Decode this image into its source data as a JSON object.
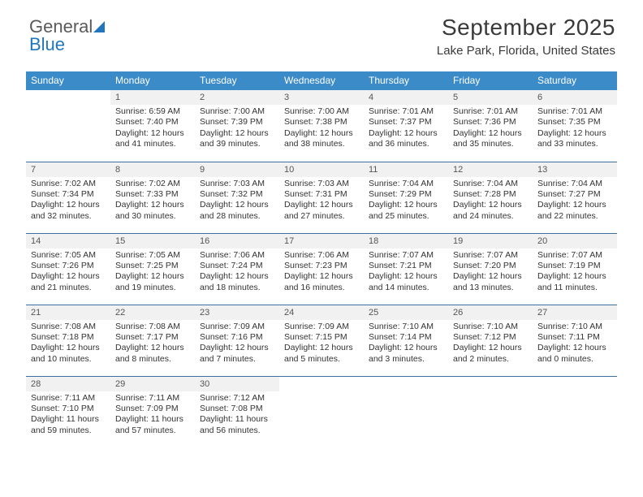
{
  "brand": {
    "part1": "General",
    "part2": "Blue"
  },
  "header": {
    "month_title": "September 2025",
    "location": "Lake Park, Florida, United States"
  },
  "colors": {
    "header_bg": "#3b8bc9",
    "header_text": "#ffffff",
    "daynum_bg": "#f1f1f1",
    "row_border": "#3b6fa0",
    "brand_gray": "#5a5a5a",
    "brand_blue": "#2176bd"
  },
  "day_headers": [
    "Sunday",
    "Monday",
    "Tuesday",
    "Wednesday",
    "Thursday",
    "Friday",
    "Saturday"
  ],
  "weeks": [
    [
      null,
      {
        "n": "1",
        "sr": "Sunrise: 6:59 AM",
        "ss": "Sunset: 7:40 PM",
        "dl": "Daylight: 12 hours and 41 minutes."
      },
      {
        "n": "2",
        "sr": "Sunrise: 7:00 AM",
        "ss": "Sunset: 7:39 PM",
        "dl": "Daylight: 12 hours and 39 minutes."
      },
      {
        "n": "3",
        "sr": "Sunrise: 7:00 AM",
        "ss": "Sunset: 7:38 PM",
        "dl": "Daylight: 12 hours and 38 minutes."
      },
      {
        "n": "4",
        "sr": "Sunrise: 7:01 AM",
        "ss": "Sunset: 7:37 PM",
        "dl": "Daylight: 12 hours and 36 minutes."
      },
      {
        "n": "5",
        "sr": "Sunrise: 7:01 AM",
        "ss": "Sunset: 7:36 PM",
        "dl": "Daylight: 12 hours and 35 minutes."
      },
      {
        "n": "6",
        "sr": "Sunrise: 7:01 AM",
        "ss": "Sunset: 7:35 PM",
        "dl": "Daylight: 12 hours and 33 minutes."
      }
    ],
    [
      {
        "n": "7",
        "sr": "Sunrise: 7:02 AM",
        "ss": "Sunset: 7:34 PM",
        "dl": "Daylight: 12 hours and 32 minutes."
      },
      {
        "n": "8",
        "sr": "Sunrise: 7:02 AM",
        "ss": "Sunset: 7:33 PM",
        "dl": "Daylight: 12 hours and 30 minutes."
      },
      {
        "n": "9",
        "sr": "Sunrise: 7:03 AM",
        "ss": "Sunset: 7:32 PM",
        "dl": "Daylight: 12 hours and 28 minutes."
      },
      {
        "n": "10",
        "sr": "Sunrise: 7:03 AM",
        "ss": "Sunset: 7:31 PM",
        "dl": "Daylight: 12 hours and 27 minutes."
      },
      {
        "n": "11",
        "sr": "Sunrise: 7:04 AM",
        "ss": "Sunset: 7:29 PM",
        "dl": "Daylight: 12 hours and 25 minutes."
      },
      {
        "n": "12",
        "sr": "Sunrise: 7:04 AM",
        "ss": "Sunset: 7:28 PM",
        "dl": "Daylight: 12 hours and 24 minutes."
      },
      {
        "n": "13",
        "sr": "Sunrise: 7:04 AM",
        "ss": "Sunset: 7:27 PM",
        "dl": "Daylight: 12 hours and 22 minutes."
      }
    ],
    [
      {
        "n": "14",
        "sr": "Sunrise: 7:05 AM",
        "ss": "Sunset: 7:26 PM",
        "dl": "Daylight: 12 hours and 21 minutes."
      },
      {
        "n": "15",
        "sr": "Sunrise: 7:05 AM",
        "ss": "Sunset: 7:25 PM",
        "dl": "Daylight: 12 hours and 19 minutes."
      },
      {
        "n": "16",
        "sr": "Sunrise: 7:06 AM",
        "ss": "Sunset: 7:24 PM",
        "dl": "Daylight: 12 hours and 18 minutes."
      },
      {
        "n": "17",
        "sr": "Sunrise: 7:06 AM",
        "ss": "Sunset: 7:23 PM",
        "dl": "Daylight: 12 hours and 16 minutes."
      },
      {
        "n": "18",
        "sr": "Sunrise: 7:07 AM",
        "ss": "Sunset: 7:21 PM",
        "dl": "Daylight: 12 hours and 14 minutes."
      },
      {
        "n": "19",
        "sr": "Sunrise: 7:07 AM",
        "ss": "Sunset: 7:20 PM",
        "dl": "Daylight: 12 hours and 13 minutes."
      },
      {
        "n": "20",
        "sr": "Sunrise: 7:07 AM",
        "ss": "Sunset: 7:19 PM",
        "dl": "Daylight: 12 hours and 11 minutes."
      }
    ],
    [
      {
        "n": "21",
        "sr": "Sunrise: 7:08 AM",
        "ss": "Sunset: 7:18 PM",
        "dl": "Daylight: 12 hours and 10 minutes."
      },
      {
        "n": "22",
        "sr": "Sunrise: 7:08 AM",
        "ss": "Sunset: 7:17 PM",
        "dl": "Daylight: 12 hours and 8 minutes."
      },
      {
        "n": "23",
        "sr": "Sunrise: 7:09 AM",
        "ss": "Sunset: 7:16 PM",
        "dl": "Daylight: 12 hours and 7 minutes."
      },
      {
        "n": "24",
        "sr": "Sunrise: 7:09 AM",
        "ss": "Sunset: 7:15 PM",
        "dl": "Daylight: 12 hours and 5 minutes."
      },
      {
        "n": "25",
        "sr": "Sunrise: 7:10 AM",
        "ss": "Sunset: 7:14 PM",
        "dl": "Daylight: 12 hours and 3 minutes."
      },
      {
        "n": "26",
        "sr": "Sunrise: 7:10 AM",
        "ss": "Sunset: 7:12 PM",
        "dl": "Daylight: 12 hours and 2 minutes."
      },
      {
        "n": "27",
        "sr": "Sunrise: 7:10 AM",
        "ss": "Sunset: 7:11 PM",
        "dl": "Daylight: 12 hours and 0 minutes."
      }
    ],
    [
      {
        "n": "28",
        "sr": "Sunrise: 7:11 AM",
        "ss": "Sunset: 7:10 PM",
        "dl": "Daylight: 11 hours and 59 minutes."
      },
      {
        "n": "29",
        "sr": "Sunrise: 7:11 AM",
        "ss": "Sunset: 7:09 PM",
        "dl": "Daylight: 11 hours and 57 minutes."
      },
      {
        "n": "30",
        "sr": "Sunrise: 7:12 AM",
        "ss": "Sunset: 7:08 PM",
        "dl": "Daylight: 11 hours and 56 minutes."
      },
      null,
      null,
      null,
      null
    ]
  ]
}
